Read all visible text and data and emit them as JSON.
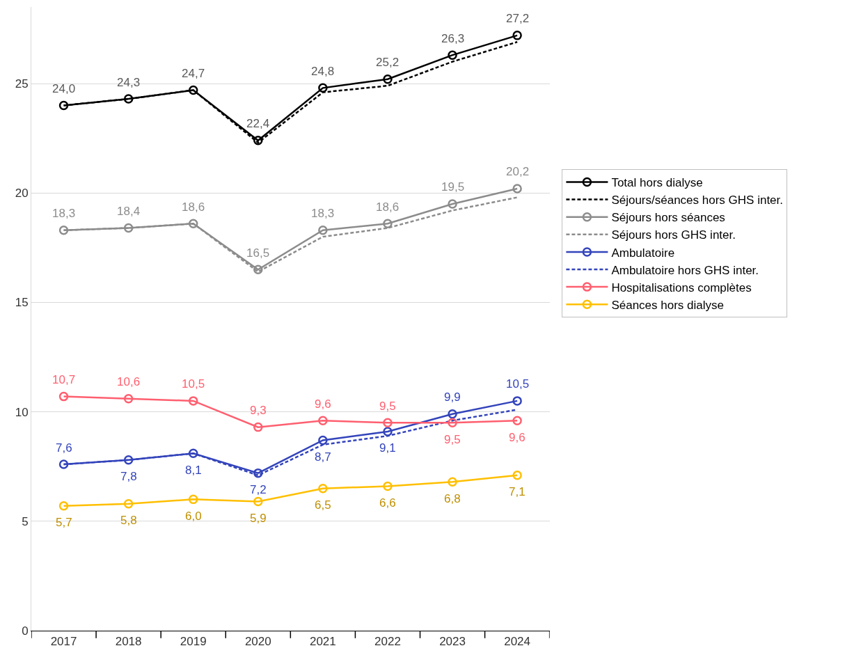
{
  "chart_data": {
    "type": "line",
    "categories": [
      "2017",
      "2018",
      "2019",
      "2020",
      "2021",
      "2022",
      "2023",
      "2024"
    ],
    "ylim": [
      0,
      28.5
    ],
    "yticks": [
      0,
      5,
      10,
      15,
      20,
      25
    ],
    "grid": "y",
    "legend": "right",
    "series": [
      {
        "name": "Total hors dialyse",
        "color": "#000000",
        "marker": "circle",
        "line_style": "solid",
        "values": [
          24.0,
          24.3,
          24.7,
          22.4,
          24.8,
          25.2,
          26.3,
          27.2
        ],
        "value_labels": [
          "24,0",
          "24,3",
          "24,7",
          "22,4",
          "24,8",
          "25,2",
          "26,3",
          "27,2"
        ]
      },
      {
        "name": "Séjours/séances hors GHS inter.",
        "color": "#000000",
        "marker": "none",
        "line_style": "dashed",
        "values": [
          24.0,
          24.3,
          24.7,
          22.3,
          24.6,
          24.9,
          26.0,
          26.9
        ]
      },
      {
        "name": "Séjours hors séances",
        "color": "#8c8c8c",
        "marker": "circle",
        "line_style": "solid",
        "values": [
          18.3,
          18.4,
          18.6,
          16.5,
          18.3,
          18.6,
          19.5,
          20.2
        ],
        "value_labels": [
          "18,3",
          "18,4",
          "18,6",
          "16,5",
          "18,3",
          "18,6",
          "19,5",
          "20,2"
        ]
      },
      {
        "name": "Séjours hors GHS inter.",
        "color": "#8c8c8c",
        "marker": "none",
        "line_style": "dashed",
        "values": [
          18.3,
          18.4,
          18.6,
          16.4,
          18.0,
          18.4,
          19.2,
          19.8
        ]
      },
      {
        "name": "Ambulatoire",
        "color": "#3344bb",
        "marker": "circle",
        "line_style": "solid",
        "values": [
          7.6,
          7.8,
          8.1,
          7.2,
          8.7,
          9.1,
          9.9,
          10.5
        ],
        "value_labels": [
          "7,6",
          "7,8",
          "8,1",
          "7,2",
          "8,7",
          "9,1",
          "9,9",
          "10,5"
        ]
      },
      {
        "name": "Ambulatoire hors GHS inter.",
        "color": "#3344bb",
        "marker": "none",
        "line_style": "dashed",
        "values": [
          7.6,
          7.8,
          8.1,
          7.1,
          8.5,
          8.9,
          9.6,
          10.1
        ]
      },
      {
        "name": "Hospitalisations complètes",
        "color": "#ff5f6f",
        "marker": "circle",
        "line_style": "solid",
        "values": [
          10.7,
          10.6,
          10.5,
          9.3,
          9.6,
          9.5,
          9.5,
          9.6
        ],
        "value_labels": [
          "10,7",
          "10,6",
          "10,5",
          "9,3",
          "9,6",
          "9,5",
          "9,5",
          "9,6"
        ]
      },
      {
        "name": "Séances hors dialyse",
        "color": "#ffbf00",
        "marker": "circle",
        "line_style": "solid",
        "values": [
          5.7,
          5.8,
          6.0,
          5.9,
          6.5,
          6.6,
          6.8,
          7.1
        ],
        "value_labels": [
          "5,7",
          "5,8",
          "6,0",
          "5,9",
          "6,5",
          "6,6",
          "6,8",
          "7,1"
        ]
      }
    ]
  }
}
